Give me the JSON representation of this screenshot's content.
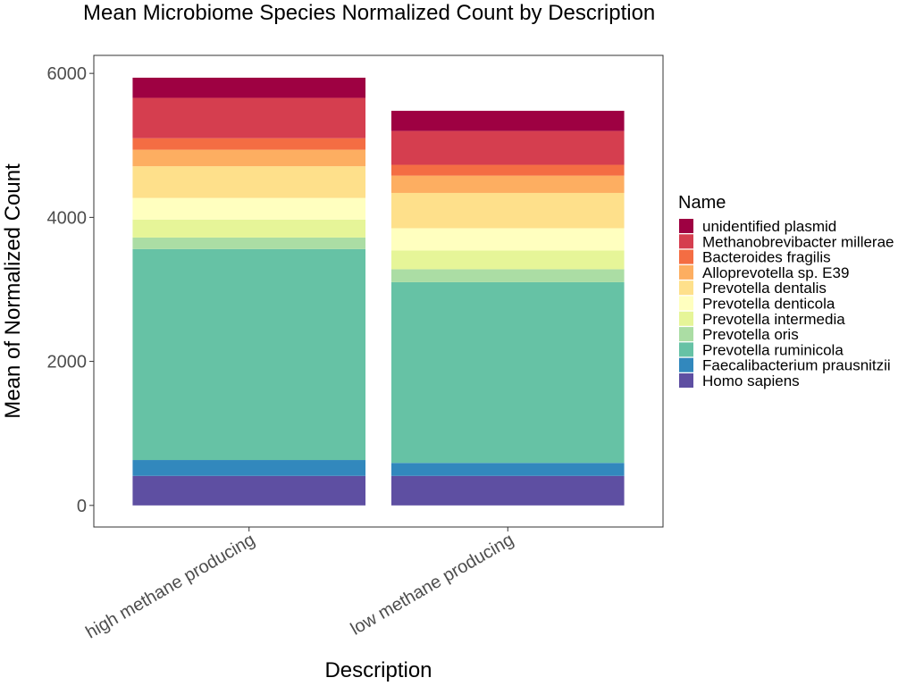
{
  "chart_data": {
    "type": "bar",
    "stacked": true,
    "title": "Mean Microbiome Species Normalized Count by Description",
    "xlabel": "Description",
    "ylabel": "Mean of Normalized Count",
    "ylim": [
      -300,
      6250
    ],
    "yticks": [
      0,
      2000,
      4000,
      6000
    ],
    "grid": false,
    "legend_title": "Name",
    "legend_position": "right",
    "categories": [
      "high methane producing",
      "low methane producing"
    ],
    "series": [
      {
        "name": "Homo sapiens",
        "color": "#5E4FA2",
        "values": [
          410,
          410
        ]
      },
      {
        "name": "Faecalibacterium prausnitzii",
        "color": "#3288BD",
        "values": [
          220,
          180
        ]
      },
      {
        "name": "Prevotella ruminicola",
        "color": "#66C2A5",
        "values": [
          2930,
          2510
        ]
      },
      {
        "name": "Prevotella oris",
        "color": "#ABDDA4",
        "values": [
          160,
          180
        ]
      },
      {
        "name": "Prevotella intermedia",
        "color": "#E6F598",
        "values": [
          250,
          260
        ]
      },
      {
        "name": "Prevotella denticola",
        "color": "#FFFFBF",
        "values": [
          300,
          310
        ]
      },
      {
        "name": "Prevotella dentalis",
        "color": "#FEE08B",
        "values": [
          440,
          490
        ]
      },
      {
        "name": "Alloprevotella sp. E39",
        "color": "#FDAE61",
        "values": [
          230,
          240
        ]
      },
      {
        "name": "Bacteroides fragilis",
        "color": "#F46D43",
        "values": [
          160,
          150
        ]
      },
      {
        "name": "Methanobrevibacter millerae",
        "color": "#D53E4F",
        "values": [
          560,
          470
        ]
      },
      {
        "name": "unidentified plasmid",
        "color": "#9E0142",
        "values": [
          280,
          280
        ]
      }
    ]
  }
}
